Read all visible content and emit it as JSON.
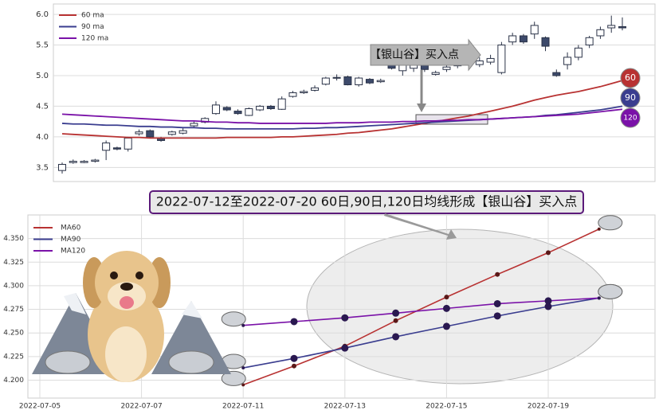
{
  "chart_data": [
    {
      "type": "candlestick",
      "open": [
        3.45,
        3.58,
        3.58,
        3.6,
        3.78,
        3.82,
        3.8,
        4.05,
        4.1,
        3.98,
        4.04,
        4.06,
        4.18,
        4.24,
        4.38,
        4.48,
        4.42,
        4.35,
        4.44,
        4.5,
        4.45,
        4.66,
        4.72,
        4.76,
        4.86,
        4.97,
        4.98,
        4.85,
        4.94,
        4.9,
        5.18,
        5.08,
        5.12,
        5.18,
        5.02,
        5.1,
        5.16,
        5.2,
        5.18,
        5.22,
        5.05,
        5.55,
        5.65,
        5.68,
        5.62,
        5.05,
        5.18,
        5.3,
        5.5,
        5.65,
        5.78,
        5.8
      ],
      "close": [
        3.55,
        3.6,
        3.6,
        3.62,
        3.9,
        3.8,
        3.98,
        4.08,
        4.0,
        3.94,
        4.08,
        4.1,
        4.22,
        4.3,
        4.52,
        4.44,
        4.38,
        4.46,
        4.5,
        4.46,
        4.62,
        4.72,
        4.74,
        4.8,
        4.96,
        4.96,
        4.85,
        4.96,
        4.88,
        4.92,
        5.12,
        5.2,
        5.2,
        5.1,
        5.05,
        5.14,
        5.22,
        5.26,
        5.24,
        5.28,
        5.5,
        5.65,
        5.55,
        5.82,
        5.48,
        5.0,
        5.3,
        5.45,
        5.62,
        5.75,
        5.82,
        5.78
      ],
      "high": [
        3.58,
        3.63,
        3.62,
        3.64,
        3.94,
        3.84,
        4.0,
        4.12,
        4.12,
        4.0,
        4.1,
        4.14,
        4.25,
        4.32,
        4.58,
        4.5,
        4.45,
        4.48,
        4.52,
        4.52,
        4.66,
        4.75,
        4.77,
        4.84,
        4.98,
        5.02,
        5.0,
        4.98,
        4.96,
        4.95,
        5.22,
        5.24,
        5.24,
        5.22,
        5.08,
        5.18,
        5.28,
        5.3,
        5.3,
        5.34,
        5.55,
        5.7,
        5.68,
        5.88,
        5.64,
        5.1,
        5.38,
        5.5,
        5.65,
        5.8,
        5.98,
        5.95
      ],
      "low": [
        3.4,
        3.56,
        3.57,
        3.58,
        3.62,
        3.78,
        3.76,
        4.02,
        3.98,
        3.92,
        4.02,
        4.04,
        4.16,
        4.22,
        4.36,
        4.42,
        4.36,
        4.34,
        4.42,
        4.44,
        4.44,
        4.64,
        4.7,
        4.74,
        4.84,
        4.92,
        4.84,
        4.82,
        4.86,
        4.88,
        5.1,
        5.0,
        5.06,
        5.06,
        5.0,
        5.06,
        5.12,
        5.16,
        5.14,
        5.18,
        5.02,
        5.5,
        5.52,
        5.6,
        5.4,
        4.98,
        5.1,
        5.25,
        5.45,
        5.6,
        5.7,
        5.74
      ],
      "up_color": "#ffffff",
      "down_color": "#3d4a6b",
      "lines": [
        {
          "name": "60 ma",
          "color": "#b83232",
          "end_label": "60",
          "values": [
            4.05,
            4.04,
            4.03,
            4.02,
            4.01,
            4.0,
            3.99,
            3.99,
            3.98,
            3.98,
            3.98,
            3.98,
            3.98,
            3.98,
            3.98,
            3.99,
            3.99,
            3.99,
            3.99,
            3.99,
            4.0,
            4.0,
            4.01,
            4.02,
            4.03,
            4.04,
            4.06,
            4.07,
            4.09,
            4.11,
            4.13,
            4.16,
            4.19,
            4.22,
            4.25,
            4.28,
            4.31,
            4.34,
            4.38,
            4.42,
            4.46,
            4.5,
            4.55,
            4.6,
            4.64,
            4.68,
            4.71,
            4.74,
            4.78,
            4.82,
            4.87,
            4.92
          ]
        },
        {
          "name": "90 ma",
          "color": "#3a3d8f",
          "end_label": "90",
          "values": [
            4.22,
            4.21,
            4.21,
            4.2,
            4.19,
            4.19,
            4.18,
            4.17,
            4.17,
            4.16,
            4.16,
            4.15,
            4.15,
            4.14,
            4.14,
            4.13,
            4.13,
            4.13,
            4.13,
            4.13,
            4.13,
            4.13,
            4.14,
            4.14,
            4.15,
            4.15,
            4.16,
            4.17,
            4.18,
            4.19,
            4.2,
            4.21,
            4.22,
            4.23,
            4.24,
            4.25,
            4.26,
            4.27,
            4.28,
            4.29,
            4.3,
            4.31,
            4.32,
            4.33,
            4.35,
            4.36,
            4.38,
            4.4,
            4.42,
            4.44,
            4.47,
            4.5
          ]
        },
        {
          "name": "120 ma",
          "color": "#7a12a8",
          "end_label": "120",
          "values": [
            4.37,
            4.36,
            4.35,
            4.34,
            4.33,
            4.32,
            4.31,
            4.3,
            4.29,
            4.28,
            4.27,
            4.26,
            4.26,
            4.25,
            4.24,
            4.24,
            4.23,
            4.23,
            4.22,
            4.22,
            4.22,
            4.22,
            4.22,
            4.22,
            4.22,
            4.23,
            4.23,
            4.23,
            4.24,
            4.24,
            4.24,
            4.25,
            4.25,
            4.26,
            4.26,
            4.27,
            4.27,
            4.28,
            4.28,
            4.29,
            4.3,
            4.31,
            4.32,
            4.33,
            4.34,
            4.35,
            4.36,
            4.37,
            4.39,
            4.41,
            4.43,
            4.45
          ]
        }
      ],
      "annotation": "【银山谷】买入点",
      "ylim": [
        3.27,
        6.17
      ],
      "yticks": [
        3.5,
        {
          "value": 4,
          "label": "4.0"
        },
        4.5,
        {
          "value": 5,
          "label": "5.0"
        },
        5.5,
        {
          "value": 6,
          "label": "6.0"
        }
      ],
      "grid": true
    },
    {
      "type": "line",
      "title": "2022-07-12至2022-07-20 60日,90日,120日均线形成【银山谷】买入点",
      "categories": [
        "2022-07-05",
        null,
        "2022-07-07",
        null,
        "2022-07-11",
        null,
        "2022-07-13",
        null,
        "2022-07-15",
        null,
        "2022-07-19",
        null
      ],
      "series": [
        {
          "name": "MA60",
          "color": "#b83232",
          "values": [
            null,
            null,
            null,
            null,
            4.195,
            4.215,
            4.236,
            4.263,
            4.288,
            4.312,
            4.335,
            4.36
          ]
        },
        {
          "name": "MA90",
          "color": "#3a3d8f",
          "values": [
            null,
            null,
            null,
            null,
            4.213,
            4.223,
            4.234,
            4.246,
            4.257,
            4.268,
            4.278,
            4.287
          ]
        },
        {
          "name": "MA120",
          "color": "#7a12a8",
          "values": [
            null,
            null,
            null,
            null,
            4.258,
            4.262,
            4.266,
            4.271,
            4.276,
            4.281,
            4.284,
            4.287
          ]
        }
      ],
      "ylim": [
        4.181,
        4.375
      ],
      "yticks": [
        {
          "value": 4.2,
          "label": "4.200"
        },
        {
          "value": 4.225,
          "label": "4.225"
        },
        {
          "value": 4.25,
          "label": "4.250"
        },
        {
          "value": 4.275,
          "label": "4.275"
        },
        {
          "value": 4.3,
          "label": "4.300"
        },
        {
          "value": 4.325,
          "label": "4.325"
        },
        {
          "value": 4.35,
          "label": "4.350"
        }
      ],
      "grid": true
    }
  ]
}
